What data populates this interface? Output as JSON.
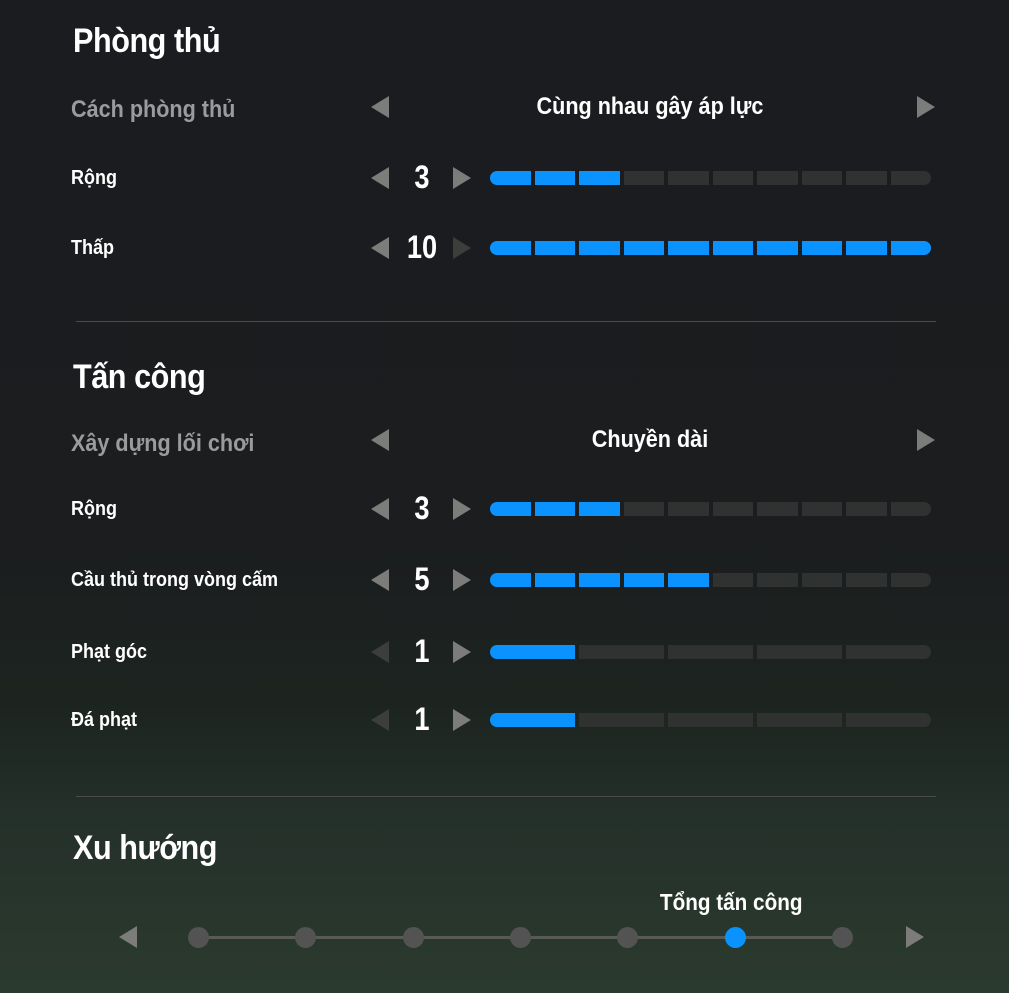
{
  "defense": {
    "title": "Phòng thủ",
    "style": {
      "label": "Cách phòng thủ",
      "value": "Cùng nhau gây áp lực"
    },
    "sliders": [
      {
        "label": "Rộng",
        "value": 3,
        "max": 10
      },
      {
        "label": "Thấp",
        "value": 10,
        "max": 10
      }
    ]
  },
  "attack": {
    "title": "Tấn công",
    "style": {
      "label": "Xây dựng lối chơi",
      "value": "Chuyền dài"
    },
    "sliders": [
      {
        "label": "Rộng",
        "value": 3,
        "max": 10
      },
      {
        "label": "Cầu thủ trong vòng cấm",
        "value": 5,
        "max": 10
      },
      {
        "label": "Phạt góc",
        "value": 1,
        "max": 5
      },
      {
        "label": "Đá phạt",
        "value": 1,
        "max": 5
      }
    ]
  },
  "tendency": {
    "title": "Xu hướng",
    "selected_label": "Tổng tấn công",
    "steps": 7,
    "selected_index": 5
  },
  "colors": {
    "accent": "#0a93ff",
    "track": "#303131"
  }
}
